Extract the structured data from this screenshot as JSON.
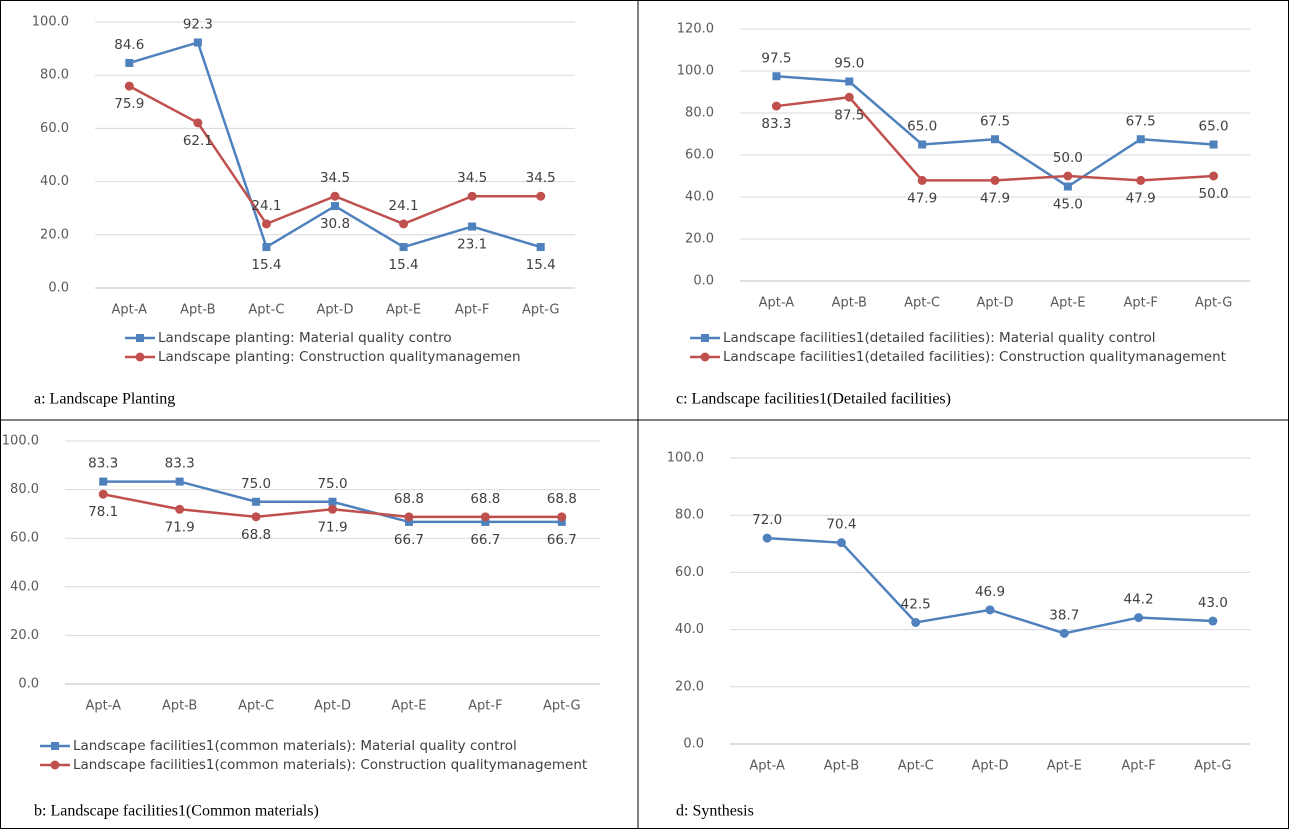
{
  "chart_data": [
    {
      "type": "line",
      "caption": "a: Landscape Planting",
      "categories": [
        "Apt-A",
        "Apt-B",
        "Apt-C",
        "Apt-D",
        "Apt-E",
        "Apt-F",
        "Apt-G"
      ],
      "ylim": [
        0,
        100
      ],
      "yticks": [
        {
          "value": 0,
          "label": "0.0"
        },
        {
          "value": 20,
          "label": "20.0"
        },
        {
          "value": 40,
          "label": "40.0"
        },
        {
          "value": 60,
          "label": "60.0"
        },
        {
          "value": 80,
          "label": "80.0"
        },
        {
          "value": 100,
          "label": "100.0"
        }
      ],
      "grid": true,
      "series": [
        {
          "name": "Landscape planting: Material quality contro",
          "color": "#4f81bd",
          "marker": "square",
          "values": [
            84.6,
            92.3,
            15.4,
            30.8,
            15.4,
            23.1,
            15.4
          ]
        },
        {
          "name": "Landscape planting: Construction qualitymanagemen",
          "color": "#c0504d",
          "marker": "circle",
          "values": [
            75.9,
            62.1,
            24.1,
            34.5,
            24.1,
            34.5,
            34.5
          ]
        }
      ]
    },
    {
      "type": "line",
      "caption": "c: Landscape facilities1(Detailed facilities)",
      "categories": [
        "Apt-A",
        "Apt-B",
        "Apt-C",
        "Apt-D",
        "Apt-E",
        "Apt-F",
        "Apt-G"
      ],
      "ylim": [
        0,
        120
      ],
      "yticks": [
        {
          "value": 0,
          "label": "0.0"
        },
        {
          "value": 20,
          "label": "20.0"
        },
        {
          "value": 40,
          "label": "40.0"
        },
        {
          "value": 60,
          "label": "60.0"
        },
        {
          "value": 80,
          "label": "80.0"
        },
        {
          "value": 100,
          "label": "100.0"
        },
        {
          "value": 120,
          "label": "120.0"
        }
      ],
      "grid": true,
      "series": [
        {
          "name": "Landscape facilities1(detailed facilities): Material quality control",
          "color": "#4f81bd",
          "marker": "square",
          "values": [
            97.5,
            95,
            65,
            67.5,
            45,
            67.5,
            65
          ],
          "value_labels": [
            "97.5",
            "95.0",
            "65.0",
            "67.5",
            "45.0",
            "67.5",
            "65.0"
          ]
        },
        {
          "name": "Landscape facilities1(detailed facilities): Construction qualitymanagement",
          "color": "#c0504d",
          "marker": "circle",
          "values": [
            83.3,
            87.5,
            47.9,
            47.9,
            50,
            47.9,
            50
          ],
          "value_labels": [
            "83.3",
            "87.5",
            "47.9",
            "47.9",
            "50.0",
            "47.9",
            "50.0"
          ]
        }
      ]
    },
    {
      "type": "line",
      "caption": "b: Landscape facilities1(Common materials)",
      "categories": [
        "Apt-A",
        "Apt-B",
        "Apt-C",
        "Apt-D",
        "Apt-E",
        "Apt-F",
        "Apt-G"
      ],
      "ylim": [
        0,
        100
      ],
      "yticks": [
        {
          "value": 0,
          "label": "0.0"
        },
        {
          "value": 20,
          "label": "20.0"
        },
        {
          "value": 40,
          "label": "40.0"
        },
        {
          "value": 60,
          "label": "60.0"
        },
        {
          "value": 80,
          "label": "80.0"
        },
        {
          "value": 100,
          "label": "100.0"
        }
      ],
      "grid": true,
      "series": [
        {
          "name": "Landscape facilities1(common materials): Material quality control",
          "color": "#4f81bd",
          "marker": "square",
          "values": [
            83.3,
            83.3,
            75,
            75,
            66.7,
            66.7,
            66.7
          ],
          "value_labels": [
            "83.3",
            "83.3",
            "75.0",
            "75.0",
            "66.7",
            "66.7",
            "66.7"
          ]
        },
        {
          "name": "Landscape facilities1(common materials): Construction qualitymanagement",
          "color": "#c0504d",
          "marker": "circle",
          "values": [
            78.1,
            71.9,
            68.8,
            71.9,
            68.8,
            68.8,
            68.8
          ]
        }
      ]
    },
    {
      "type": "line",
      "caption": "d: Synthesis",
      "categories": [
        "Apt-A",
        "Apt-B",
        "Apt-C",
        "Apt-D",
        "Apt-E",
        "Apt-F",
        "Apt-G"
      ],
      "ylim": [
        0,
        100
      ],
      "yticks": [
        {
          "value": 0,
          "label": "0.0"
        },
        {
          "value": 20,
          "label": "20.0"
        },
        {
          "value": 40,
          "label": "40.0"
        },
        {
          "value": 60,
          "label": "60.0"
        },
        {
          "value": 80,
          "label": "80.0"
        },
        {
          "value": 100,
          "label": "100.0"
        }
      ],
      "grid": true,
      "series": [
        {
          "color": "#4f81bd",
          "marker": "circle",
          "values": [
            72,
            70.4,
            42.5,
            46.9,
            38.7,
            44.2,
            43
          ],
          "value_labels": [
            "72.0",
            "70.4",
            "42.5",
            "46.9",
            "38.7",
            "44.2",
            "43.0"
          ]
        }
      ]
    }
  ]
}
